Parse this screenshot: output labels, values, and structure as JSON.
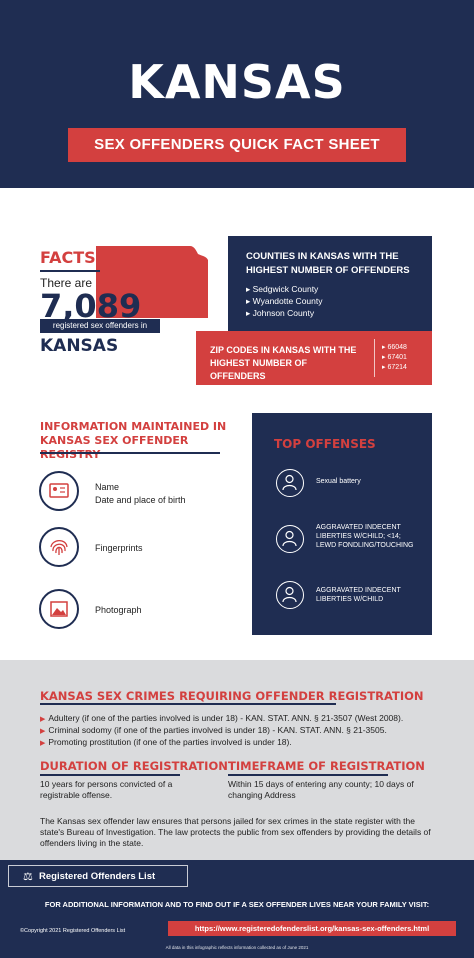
{
  "header": {
    "title": "KANSAS",
    "subtitle": "SEX OFFENDERS QUICK FACT SHEET"
  },
  "facts": {
    "heading": "FACTS",
    "there_are": "There are",
    "count": "7,089",
    "registered_label": "registered sex offenders in",
    "state": "KANSAS"
  },
  "counties": {
    "title": "COUNTIES IN KANSAS WITH THE HIGHEST NUMBER OF OFFENDERS",
    "items": [
      "Sedgwick County",
      "Wyandotte County",
      "Johnson County"
    ]
  },
  "zip_codes": {
    "title": "ZIP CODES IN KANSAS WITH THE HIGHEST NUMBER OF OFFENDERS",
    "items": [
      "66048",
      "67401",
      "67214"
    ]
  },
  "registry_info": {
    "heading": "INFORMATION MAINTAINED IN KANSAS SEX OFFENDER REGISTRY",
    "items": [
      {
        "line1": "Name",
        "line2": "Date and place of birth",
        "icon": "id-card-icon"
      },
      {
        "line1": "Fingerprints",
        "line2": "",
        "icon": "fingerprint-icon"
      },
      {
        "line1": "Photograph",
        "line2": "",
        "icon": "photo-icon"
      }
    ]
  },
  "top_offenses": {
    "heading": "TOP OFFENSES",
    "items": [
      {
        "line1": "Sexual battery",
        "line2": "",
        "line3": ""
      },
      {
        "line1": "AGGRAVATED INDECENT",
        "line2": "LIBERTIES W/CHILD; <14;",
        "line3": "LEWD FONDLING/TOUCHING"
      },
      {
        "line1": "AGGRAVATED INDECENT",
        "line2": "LIBERTIES W/CHILD",
        "line3": ""
      }
    ]
  },
  "crimes": {
    "heading": "KANSAS SEX CRIMES REQUIRING OFFENDER REGISTRATION",
    "items": [
      "Adultery (if one of the parties involved is under 18) - KAN. STAT. ANN. § 21-3507 (West 2008).",
      "Criminal sodomy (if one of the parties involved is under 18) - KAN. STAT. ANN. § 21-3505.",
      "Promoting prostitution (if one of the parties involved is under 18)."
    ]
  },
  "duration": {
    "heading": "DURATION OF REGISTRATION",
    "text": "10 years for persons convicted of a registrable offense."
  },
  "timeframe": {
    "heading": "TIMEFRAME OF REGISTRATION",
    "text": "Within 15 days of entering any county; 10 days of changing Address"
  },
  "law_text": "The Kansas sex offender law ensures that persons jailed for sex crimes in the state register with the state's Bureau of Investigation. The law protects the public from sex offenders by providing the details of offenders living in the state.",
  "footer": {
    "brand": "Registered Offenders List",
    "cta": "FOR ADDITIONAL INFORMATION AND TO FIND OUT IF A SEX OFFENDER LIVES NEAR YOUR FAMILY VISIT:",
    "copyright": "©Copyright 2021 Registered Offenders List",
    "url": "https://www.registeredofenderslist.org/kansas-sex-offenders.html",
    "data_note": "All data in this infographic reflects information collected as of June 2021"
  },
  "colors": {
    "navy": "#1f2d52",
    "red": "#d3403f",
    "gray": "#dadbdd"
  }
}
